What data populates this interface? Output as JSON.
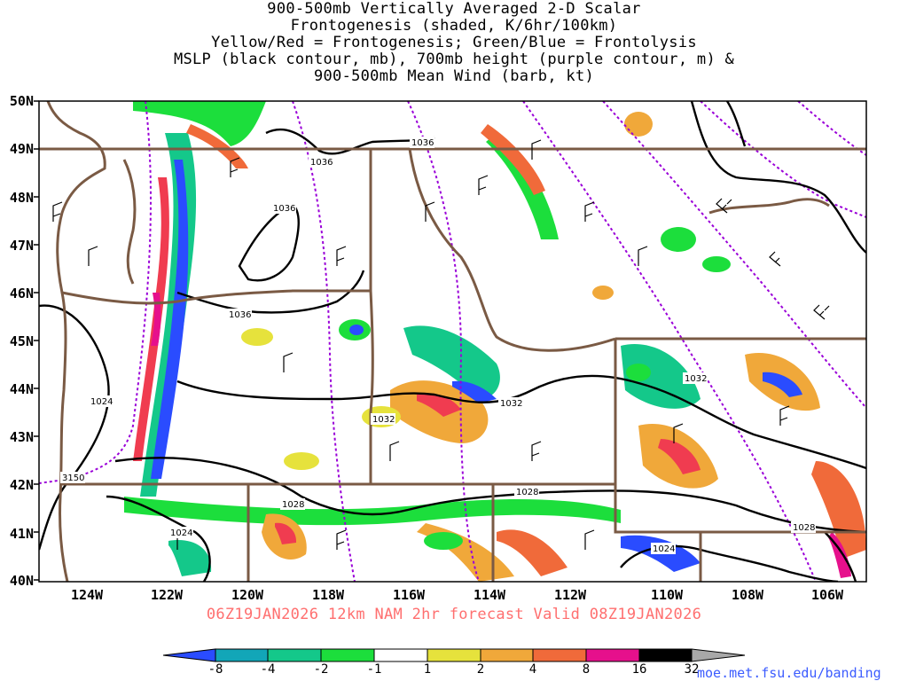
{
  "title_lines": [
    "900-500mb Vertically Averaged 2-D Scalar",
    "Frontogenesis (shaded, K/6hr/100km)",
    "Yellow/Red = Frontogenesis;  Green/Blue = Frontolysis",
    "MSLP (black contour, mb), 700mb height (purple contour, m) &",
    "900-500mb Mean Wind (barb, kt)"
  ],
  "caption": "06Z19JAN2026 12km NAM 2hr forecast Valid 08Z19JAN2026",
  "credit": "moe.met.fsu.edu/banding",
  "lat_labels": [
    "50N",
    "49N",
    "48N",
    "47N",
    "46N",
    "45N",
    "44N",
    "43N",
    "42N",
    "41N",
    "40N"
  ],
  "lon_labels": [
    "124W",
    "122W",
    "120W",
    "118W",
    "116W",
    "114W",
    "112W",
    "110W",
    "108W",
    "106W"
  ],
  "contour_labels": {
    "mslp": [
      "1036",
      "1036",
      "1036",
      "1036",
      "1032",
      "1032",
      "1032",
      "1028",
      "1028",
      "1028",
      "1024",
      "1024",
      "1024"
    ],
    "height": [
      "3150"
    ]
  },
  "colorbar": {
    "labels": [
      "-8",
      "-4",
      "-2",
      "-1",
      "1",
      "2",
      "4",
      "8",
      "16",
      "32"
    ],
    "colors": [
      "#2a4cff",
      "#12a6b8",
      "#14c88a",
      "#1cde3c",
      "#ffffff",
      "#e6e23c",
      "#f0a83a",
      "#f06a3a",
      "#f03c50",
      "#e6108c",
      "#000000",
      "#a8a8a8"
    ]
  },
  "colors": {
    "coast": "#7a5a44",
    "mslp": "#000000",
    "height": "#9a00d8",
    "caption": "#ff6f6f",
    "credit": "#3c5cff"
  }
}
